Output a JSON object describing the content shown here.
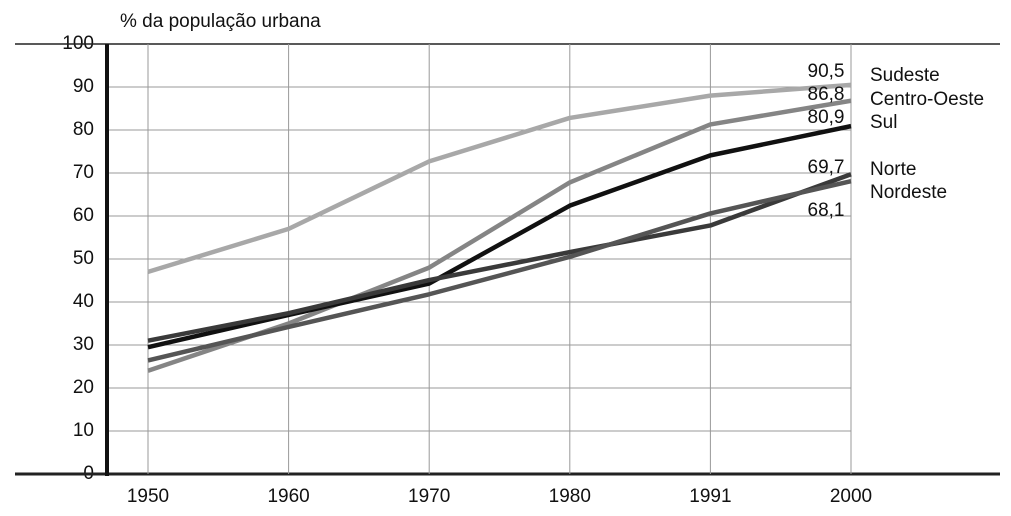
{
  "chart_data": {
    "type": "line",
    "y_label": "% da população urbana",
    "categories": [
      "1950",
      "1960",
      "1970",
      "1980",
      "1991",
      "2000"
    ],
    "ylim": [
      0,
      100
    ],
    "yticks": [
      0,
      10,
      20,
      30,
      40,
      50,
      60,
      70,
      80,
      90,
      100
    ],
    "grid": true,
    "series": [
      {
        "name": "Sudeste",
        "color": "#a8a8a8",
        "values": [
          47,
          57,
          72.7,
          82.8,
          88,
          90.5
        ],
        "value_labels": [
          null,
          null,
          null,
          null,
          null,
          "90,5"
        ]
      },
      {
        "name": "Centro-Oeste",
        "color": "#858585",
        "values": [
          24,
          35,
          48,
          67.8,
          81.3,
          86.8
        ],
        "value_labels": [
          null,
          null,
          null,
          null,
          null,
          "86,8"
        ]
      },
      {
        "name": "Sul",
        "color": "#111111",
        "values": [
          29.5,
          37,
          44.3,
          62.4,
          74.1,
          80.9
        ],
        "value_labels": [
          null,
          null,
          null,
          null,
          null,
          "80,9"
        ]
      },
      {
        "name": "Norte",
        "color": "#3a3a3a",
        "values": [
          31,
          37.4,
          45.1,
          51.6,
          57.8,
          69.7
        ],
        "value_labels": [
          null,
          null,
          null,
          null,
          null,
          "69,7"
        ]
      },
      {
        "name": "Nordeste",
        "color": "#555555",
        "values": [
          26.4,
          34.2,
          41.8,
          50.5,
          60.6,
          68.1
        ],
        "value_labels": [
          null,
          null,
          null,
          null,
          null,
          "68,1"
        ]
      }
    ]
  }
}
